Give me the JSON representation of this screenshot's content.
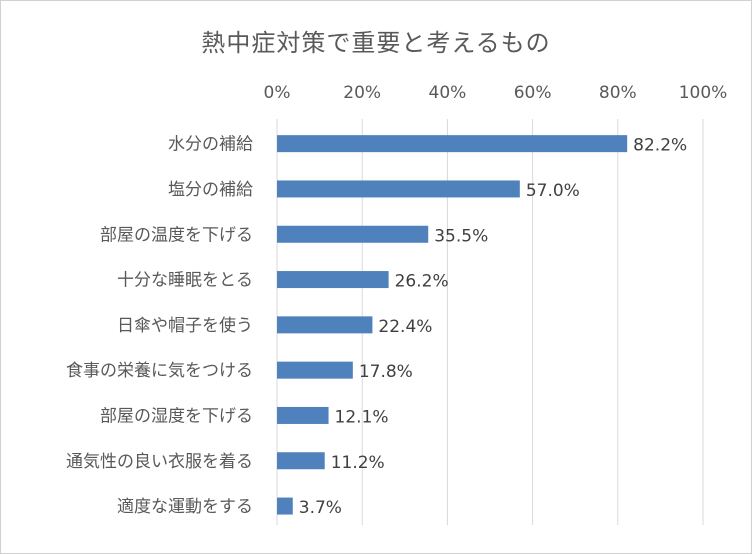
{
  "chart_data": {
    "type": "bar",
    "orientation": "horizontal",
    "title": "熱中症対策で重要と考えるもの",
    "xlim": [
      0,
      100
    ],
    "ticks": [
      "0%",
      "20%",
      "40%",
      "60%",
      "80%",
      "100%"
    ],
    "tick_values": [
      0,
      20,
      40,
      60,
      80,
      100
    ],
    "grid": true,
    "axis_position": "top",
    "categories": [
      "水分の補給",
      "塩分の補給",
      "部屋の温度を下げる",
      "十分な睡眠をとる",
      "日傘や帽子を使う",
      "食事の栄養に気をつける",
      "部屋の湿度を下げる",
      "通気性の良い衣服を着る",
      "適度な運動をする"
    ],
    "values": [
      82.2,
      57.0,
      35.5,
      26.2,
      22.4,
      17.8,
      12.1,
      11.2,
      3.7
    ],
    "data_labels": [
      "82.2%",
      "57.0%",
      "35.5%",
      "26.2%",
      "22.4%",
      "17.8%",
      "12.1%",
      "11.2%",
      "3.7%"
    ],
    "bar_color": "#4f81bd",
    "grid_color": "#d9d9d9"
  }
}
